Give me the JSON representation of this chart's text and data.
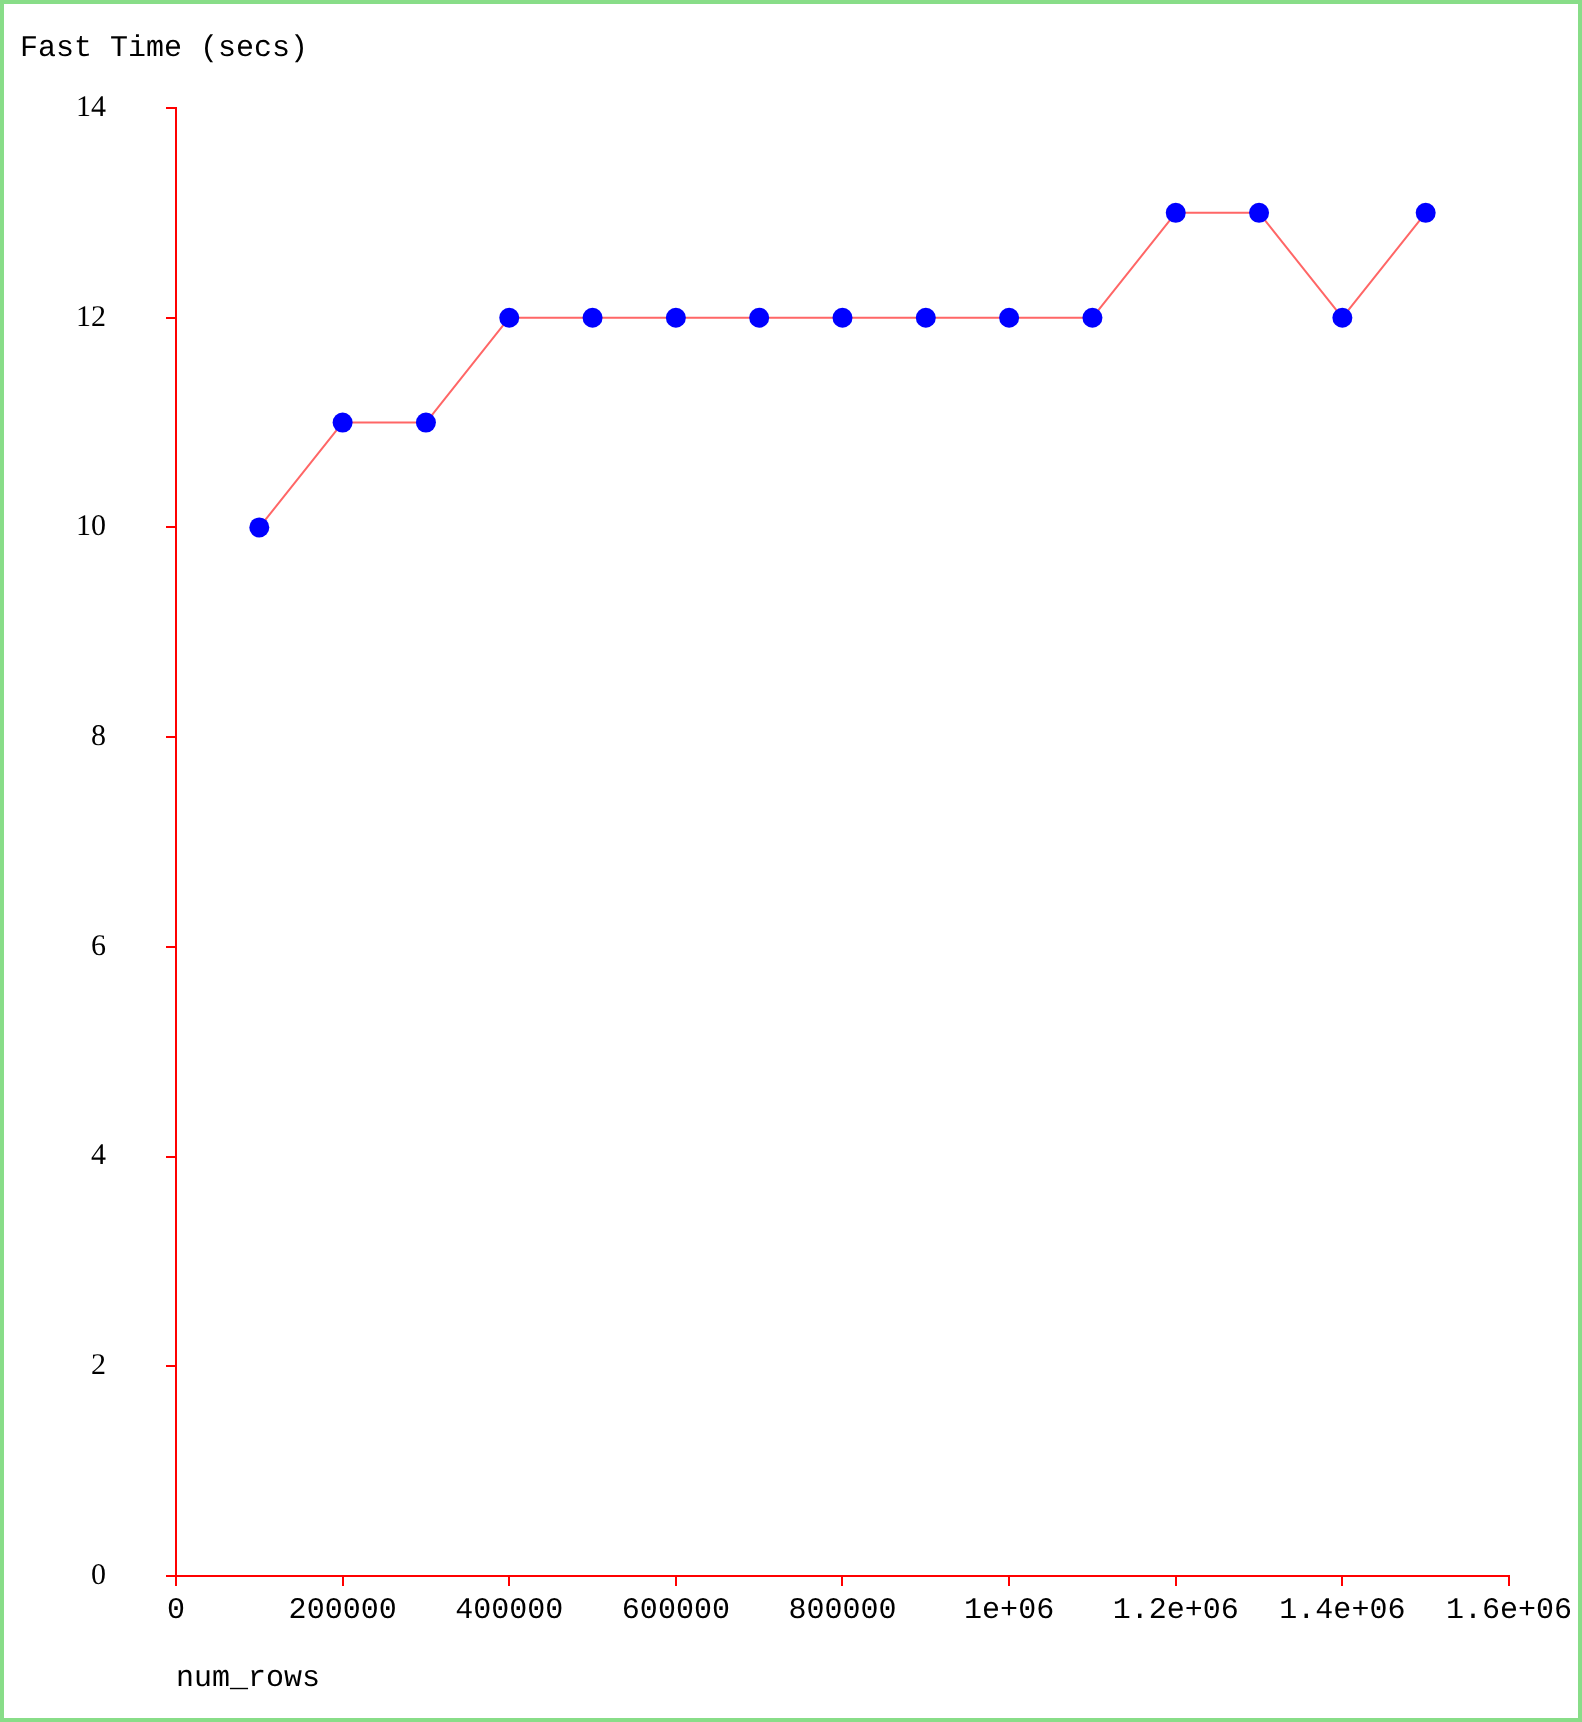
{
  "chart_data": {
    "type": "line",
    "ylabel": "Fast Time (secs)",
    "xlabel": "num_rows",
    "x": [
      100000,
      200000,
      300000,
      400000,
      500000,
      600000,
      700000,
      800000,
      900000,
      1000000,
      1100000,
      1200000,
      1300000,
      1400000,
      1500000
    ],
    "series": [
      {
        "color": "#ff6666",
        "colors": [
          "#0000ff",
          "#0000ff",
          "#0000ff",
          "#0000ff",
          "#0000ff",
          "#0000ff",
          "#0000ff",
          "#0000ff",
          "#0000ff",
          "#0000ff",
          "#0000ff",
          "#0000ff",
          "#0000ff",
          "#0000ff",
          "#0000ff"
        ],
        "values": [
          10,
          11,
          11,
          12,
          12,
          12,
          12,
          12,
          12,
          12,
          12,
          13,
          13,
          12,
          13
        ]
      }
    ],
    "xlim": [
      0,
      1600000
    ],
    "xticks": [
      0,
      200000,
      400000,
      600000,
      800000,
      {
        "value": 1000000,
        "label": "1e+06"
      },
      {
        "value": 1200000,
        "label": "1.2e+06"
      },
      {
        "value": 1400000,
        "label": "1.4e+06"
      },
      {
        "value": 1600000,
        "label": "1.6e+06"
      }
    ],
    "ylim": [
      0,
      14
    ],
    "yticks": [
      0,
      2,
      4,
      6,
      8,
      10,
      12,
      14
    ],
    "grid": false,
    "legend": false,
    "marker": "circle",
    "line_style": "solid"
  }
}
